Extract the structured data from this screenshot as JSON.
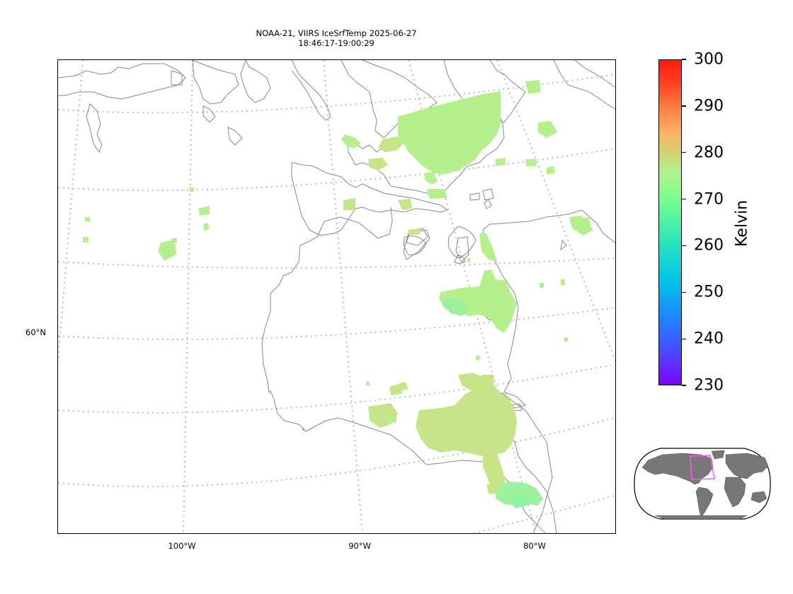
{
  "title": {
    "line1": "NOAA-21, VIIRS IceSrfTemp 2025-06-27",
    "line2": "18:46:17-19:00:29"
  },
  "map": {
    "lon_labels": [
      "100°W",
      "90°W",
      "80°W"
    ],
    "lat_labels": [
      "60°N"
    ],
    "graticule_color": "#bbbbbb",
    "coastline_color": "#888888",
    "pixel_colors": [
      "#c6e588",
      "#b5f08c",
      "#9ef29e",
      "#86f7a2"
    ]
  },
  "colorbar": {
    "label": "Kelvin",
    "ticks": [
      "300",
      "290",
      "280",
      "270",
      "260",
      "250",
      "240",
      "230"
    ],
    "range": [
      230,
      300
    ],
    "colormap": "rainbow"
  },
  "inset": {
    "projection": "robinson",
    "land_color": "#777777",
    "box_color": "#ff55ff"
  }
}
